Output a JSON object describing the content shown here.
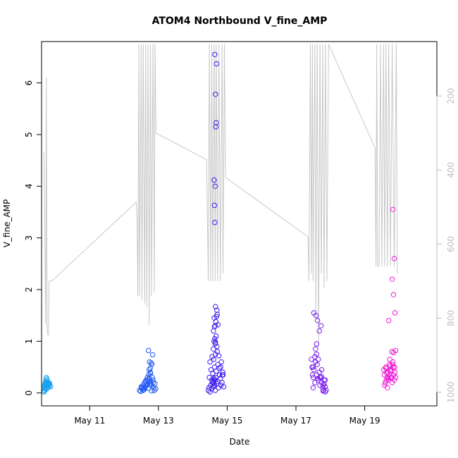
{
  "chart_data": {
    "type": "scatter",
    "title": "ATOM4 Northbound V_fine_AMP",
    "xlabel": "Date",
    "ylabel": "V_fine_AMP",
    "x_ticks": [
      "May 11",
      "May 13",
      "May 15",
      "May 17",
      "May 19"
    ],
    "x_tick_days": [
      11,
      13,
      15,
      17,
      19
    ],
    "xlim": [
      9.6,
      21.1
    ],
    "y_ticks": [
      0,
      1,
      2,
      3,
      4,
      5,
      6
    ],
    "ylim": [
      -0.25,
      6.8
    ],
    "y2_ticks": [
      200,
      400,
      600,
      800,
      1000
    ],
    "y2lim": [
      53,
      1037
    ],
    "y2_reversed": true,
    "grid": false,
    "legend": "none",
    "colors": {
      "line": "#c8c8c8",
      "axis": "#000000",
      "axis_right": "#bdbdbd",
      "groups": [
        "#1aa3f0",
        "#1f57f2",
        "#3b1af0",
        "#7b1ff0",
        "#ee1ad7"
      ]
    },
    "series": [
      {
        "color": "#1aa3f0",
        "x": [
          9.67,
          9.68,
          9.68,
          9.69,
          9.7,
          9.7,
          9.71,
          9.71,
          9.72,
          9.72,
          9.73,
          9.73,
          9.74,
          9.75,
          9.75,
          9.76,
          9.77,
          9.77,
          9.78,
          9.79,
          9.8,
          9.81,
          9.82,
          9.83,
          9.85,
          9.86,
          9.69,
          9.74,
          9.78,
          9.82,
          9.71,
          9.76
        ],
        "y": [
          0.02,
          0.05,
          0.12,
          0.15,
          0.18,
          0.08,
          0.2,
          0.1,
          0.14,
          0.22,
          0.17,
          0.25,
          0.3,
          0.19,
          0.12,
          0.16,
          0.2,
          0.18,
          0.13,
          0.17,
          0.2,
          0.15,
          0.18,
          0.19,
          0.14,
          0.12,
          0.04,
          0.07,
          0.1,
          0.16,
          0.09,
          0.27
        ]
      },
      {
        "color": "#1f57f2",
        "x": [
          12.45,
          12.48,
          12.5,
          12.52,
          12.55,
          12.57,
          12.6,
          12.62,
          12.64,
          12.66,
          12.68,
          12.7,
          12.72,
          12.74,
          12.76,
          12.78,
          12.8,
          12.82,
          12.84,
          12.86,
          12.88,
          12.9,
          12.92,
          12.5,
          12.55,
          12.6,
          12.65,
          12.7,
          12.75,
          12.8,
          12.85,
          12.58,
          12.63,
          12.69,
          12.73,
          12.77,
          12.81,
          12.74,
          12.79,
          12.71,
          12.83,
          12.76
        ],
        "y": [
          0.05,
          0.03,
          0.1,
          0.08,
          0.15,
          0.06,
          0.2,
          0.12,
          0.25,
          0.18,
          0.3,
          0.22,
          0.35,
          0.28,
          0.4,
          0.2,
          0.15,
          0.3,
          0.25,
          0.1,
          0.05,
          0.18,
          0.08,
          0.12,
          0.05,
          0.08,
          0.14,
          0.09,
          0.17,
          0.04,
          0.2,
          0.1,
          0.22,
          0.26,
          0.45,
          0.38,
          0.55,
          0.6,
          0.58,
          0.82,
          0.74,
          0.48
        ]
      },
      {
        "color": "#3b1af0",
        "x": [
          14.45,
          14.47,
          14.5,
          14.52,
          14.55,
          14.57,
          14.6,
          14.62,
          14.65,
          14.67,
          14.7,
          14.72,
          14.75,
          14.78,
          14.8,
          14.82,
          14.85,
          14.87,
          14.9,
          14.48,
          14.53,
          14.58,
          14.63,
          14.68,
          14.73,
          14.77,
          14.83,
          14.88,
          14.5,
          14.56,
          14.61,
          14.66,
          14.71,
          14.76,
          14.81,
          14.86,
          14.55,
          14.6,
          14.65,
          14.7,
          14.62,
          14.64,
          14.66,
          14.68,
          14.6,
          14.63,
          14.65,
          14.67,
          14.69,
          14.71,
          14.73,
          14.62,
          14.66,
          14.7,
          14.64,
          14.63,
          14.65,
          14.62,
          14.67,
          14.68,
          14.66,
          14.69,
          14.64,
          14.6,
          14.59,
          14.61,
          14.63,
          14.65
        ],
        "y": [
          0.05,
          0.1,
          0.02,
          0.15,
          0.08,
          0.2,
          0.12,
          0.25,
          0.05,
          0.3,
          0.18,
          0.22,
          0.1,
          0.35,
          0.28,
          0.15,
          0.2,
          0.4,
          0.12,
          0.3,
          0.45,
          0.38,
          0.5,
          0.42,
          0.55,
          0.48,
          0.6,
          0.35,
          0.6,
          0.7,
          0.65,
          0.75,
          0.8,
          0.72,
          0.5,
          0.35,
          0.25,
          0.85,
          0.95,
          0.9,
          1.0,
          1.05,
          0.98,
          1.1,
          1.2,
          1.28,
          1.3,
          1.38,
          1.48,
          1.52,
          1.32,
          1.45,
          1.67,
          1.6,
          3.3,
          3.63,
          4.0,
          4.12,
          5.15,
          5.23,
          5.78,
          6.37,
          6.55,
          0.18,
          0.22,
          0.28,
          0.15,
          0.25
        ]
      },
      {
        "color": "#7b1ff0",
        "x": [
          17.45,
          17.47,
          17.5,
          17.52,
          17.55,
          17.57,
          17.6,
          17.62,
          17.65,
          17.68,
          17.7,
          17.72,
          17.75,
          17.78,
          17.8,
          17.82,
          17.85,
          17.88,
          17.5,
          17.55,
          17.6,
          17.65,
          17.7,
          17.75,
          17.8,
          17.85,
          17.52,
          17.58,
          17.63,
          17.68,
          17.73,
          17.6,
          17.57,
          17.5,
          17.48,
          17.74,
          17.64,
          17.85,
          17.82,
          17.79
        ],
        "y": [
          0.65,
          0.5,
          0.3,
          0.45,
          0.2,
          0.6,
          0.35,
          0.55,
          0.25,
          0.4,
          0.15,
          0.3,
          0.2,
          0.1,
          0.05,
          0.25,
          0.02,
          0.05,
          0.1,
          0.7,
          0.75,
          0.65,
          0.3,
          0.45,
          0.15,
          0.25,
          1.55,
          1.5,
          1.4,
          1.2,
          1.3,
          0.95,
          0.85,
          0.5,
          0.35,
          0.32,
          0.28,
          0.12,
          0.18,
          0.04
        ]
      },
      {
        "color": "#ee1ad7",
        "x": [
          19.55,
          19.57,
          19.6,
          19.62,
          19.65,
          19.67,
          19.7,
          19.72,
          19.75,
          19.77,
          19.8,
          19.82,
          19.85,
          19.87,
          19.9,
          19.58,
          19.63,
          19.68,
          19.73,
          19.78,
          19.83,
          19.88,
          19.6,
          19.66,
          19.71,
          19.76,
          19.81,
          19.86,
          19.61,
          19.64,
          19.69,
          19.74,
          19.79,
          19.84,
          19.7,
          19.75,
          19.8,
          19.86,
          19.84,
          19.82,
          19.88,
          19.9
        ],
        "y": [
          0.45,
          0.35,
          0.2,
          0.5,
          0.3,
          0.4,
          0.25,
          0.55,
          0.3,
          0.45,
          0.2,
          0.6,
          0.35,
          0.5,
          0.3,
          0.15,
          0.25,
          0.4,
          0.65,
          0.3,
          0.5,
          0.4,
          0.2,
          0.1,
          0.35,
          0.45,
          0.55,
          0.25,
          0.48,
          0.38,
          0.28,
          0.52,
          0.8,
          0.78,
          1.4,
          0.42,
          2.2,
          2.6,
          1.9,
          3.55,
          1.55,
          0.82
        ]
      }
    ],
    "y2_series": {
      "color": "#c8c8c8",
      "x": [
        9.67,
        9.72,
        9.74,
        9.76,
        9.78,
        9.8,
        9.82,
        9.84,
        9.86,
        9.88,
        9.9,
        12.35,
        12.38,
        12.4,
        12.43,
        12.45,
        12.5,
        12.52,
        12.56,
        12.6,
        12.63,
        12.66,
        12.7,
        12.73,
        12.77,
        12.8,
        12.84,
        12.88,
        12.9,
        12.93,
        14.4,
        14.45,
        14.48,
        14.52,
        14.55,
        14.58,
        14.62,
        14.65,
        14.68,
        14.72,
        14.76,
        14.8,
        14.85,
        14.88,
        14.92,
        14.95,
        17.35,
        17.38,
        17.42,
        17.45,
        17.48,
        17.5,
        17.55,
        17.58,
        17.62,
        17.66,
        17.7,
        17.74,
        17.78,
        17.82,
        17.86,
        17.9,
        17.95,
        19.3,
        19.33,
        19.35,
        19.38,
        19.42,
        19.46,
        19.5,
        19.55,
        19.58,
        19.62,
        19.66,
        19.7,
        19.75,
        19.8,
        19.86,
        19.92,
        19.95
      ],
      "y": [
        350,
        815,
        150,
        815,
        845,
        845,
        700,
        700,
        700,
        700,
        700,
        487,
        530,
        740,
        60,
        740,
        60,
        750,
        60,
        760,
        60,
        770,
        60,
        820,
        60,
        740,
        60,
        730,
        60,
        300,
        372,
        700,
        60,
        700,
        60,
        700,
        60,
        700,
        60,
        700,
        60,
        700,
        60,
        680,
        60,
        420,
        580,
        700,
        60,
        680,
        60,
        700,
        60,
        800,
        60,
        880,
        60,
        680,
        60,
        720,
        60,
        700,
        60,
        340,
        660,
        60,
        660,
        660,
        60,
        660,
        60,
        660,
        60,
        660,
        60,
        660,
        60,
        660,
        60,
        680
      ]
    }
  }
}
